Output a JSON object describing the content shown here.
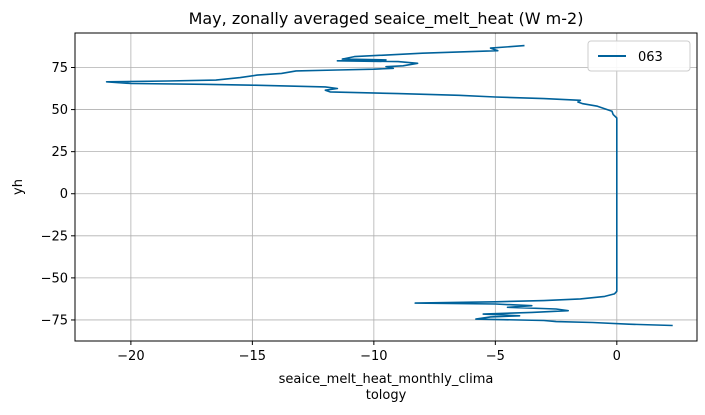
{
  "chart_data": {
    "type": "line",
    "title": "May, zonally averaged seaice_melt_heat (W m-2)",
    "xlabel_lines": [
      "seaice_melt_heat_monthly_clima",
      "tology"
    ],
    "ylabel": "yh",
    "xlim": [
      -22.3,
      3.3
    ],
    "ylim": [
      -87.5,
      95.5
    ],
    "xticks": [
      -20,
      -15,
      -10,
      -5,
      0
    ],
    "xtick_labels": [
      "−20",
      "−15",
      "−10",
      "−5",
      "0"
    ],
    "yticks": [
      -75,
      -50,
      -25,
      0,
      25,
      50,
      75
    ],
    "ytick_labels": [
      "−75",
      "−50",
      "−25",
      "0",
      "25",
      "50",
      "75"
    ],
    "grid": true,
    "legend_position": "top-right",
    "series": [
      {
        "name": "063",
        "color": "#00629b",
        "points": [
          [
            -3.8,
            88.0
          ],
          [
            -5.2,
            86.5
          ],
          [
            -4.9,
            85.0
          ],
          [
            -8.0,
            83.5
          ],
          [
            -10.8,
            81.5
          ],
          [
            -11.3,
            80.0
          ],
          [
            -9.5,
            79.5
          ],
          [
            -11.5,
            79.0
          ],
          [
            -9.0,
            78.5
          ],
          [
            -8.2,
            77.5
          ],
          [
            -8.8,
            76.0
          ],
          [
            -9.5,
            75.5
          ],
          [
            -9.2,
            74.5
          ],
          [
            -10.0,
            74.0
          ],
          [
            -11.5,
            73.5
          ],
          [
            -13.2,
            73.0
          ],
          [
            -13.8,
            71.5
          ],
          [
            -14.8,
            70.5
          ],
          [
            -15.5,
            69.0
          ],
          [
            -16.5,
            67.5
          ],
          [
            -18.5,
            67.0
          ],
          [
            -21.0,
            66.5
          ],
          [
            -20.0,
            65.5
          ],
          [
            -17.0,
            65.0
          ],
          [
            -15.0,
            64.5
          ],
          [
            -12.0,
            63.5
          ],
          [
            -11.5,
            62.5
          ],
          [
            -12.0,
            61.5
          ],
          [
            -11.8,
            60.5
          ],
          [
            -9.0,
            59.5
          ],
          [
            -6.5,
            58.5
          ],
          [
            -5.0,
            57.5
          ],
          [
            -3.0,
            56.5
          ],
          [
            -1.5,
            55.5
          ],
          [
            -1.6,
            54.5
          ],
          [
            -1.4,
            53.5
          ],
          [
            -0.8,
            52.0
          ],
          [
            -0.5,
            50.5
          ],
          [
            -0.2,
            49.0
          ],
          [
            -0.15,
            47.0
          ],
          [
            0.0,
            45.0
          ],
          [
            0.0,
            30.0
          ],
          [
            0.0,
            0.0
          ],
          [
            0.0,
            -30.0
          ],
          [
            0.0,
            -58.0
          ],
          [
            -0.1,
            -59.5
          ],
          [
            -0.5,
            -61.0
          ],
          [
            -1.5,
            -62.5
          ],
          [
            -3.0,
            -63.5
          ],
          [
            -5.0,
            -64.2
          ],
          [
            -8.3,
            -65.0
          ],
          [
            -5.0,
            -65.5
          ],
          [
            -3.5,
            -66.5
          ],
          [
            -4.5,
            -67.5
          ],
          [
            -2.5,
            -68.5
          ],
          [
            -2.0,
            -69.5
          ],
          [
            -3.5,
            -70.5
          ],
          [
            -5.5,
            -71.5
          ],
          [
            -4.0,
            -72.5
          ],
          [
            -5.2,
            -73.2
          ],
          [
            -5.8,
            -74.5
          ],
          [
            -3.0,
            -75.3
          ],
          [
            -2.5,
            -76.0
          ],
          [
            -1.0,
            -76.5
          ],
          [
            0.5,
            -77.5
          ],
          [
            2.3,
            -78.3
          ]
        ]
      }
    ]
  }
}
